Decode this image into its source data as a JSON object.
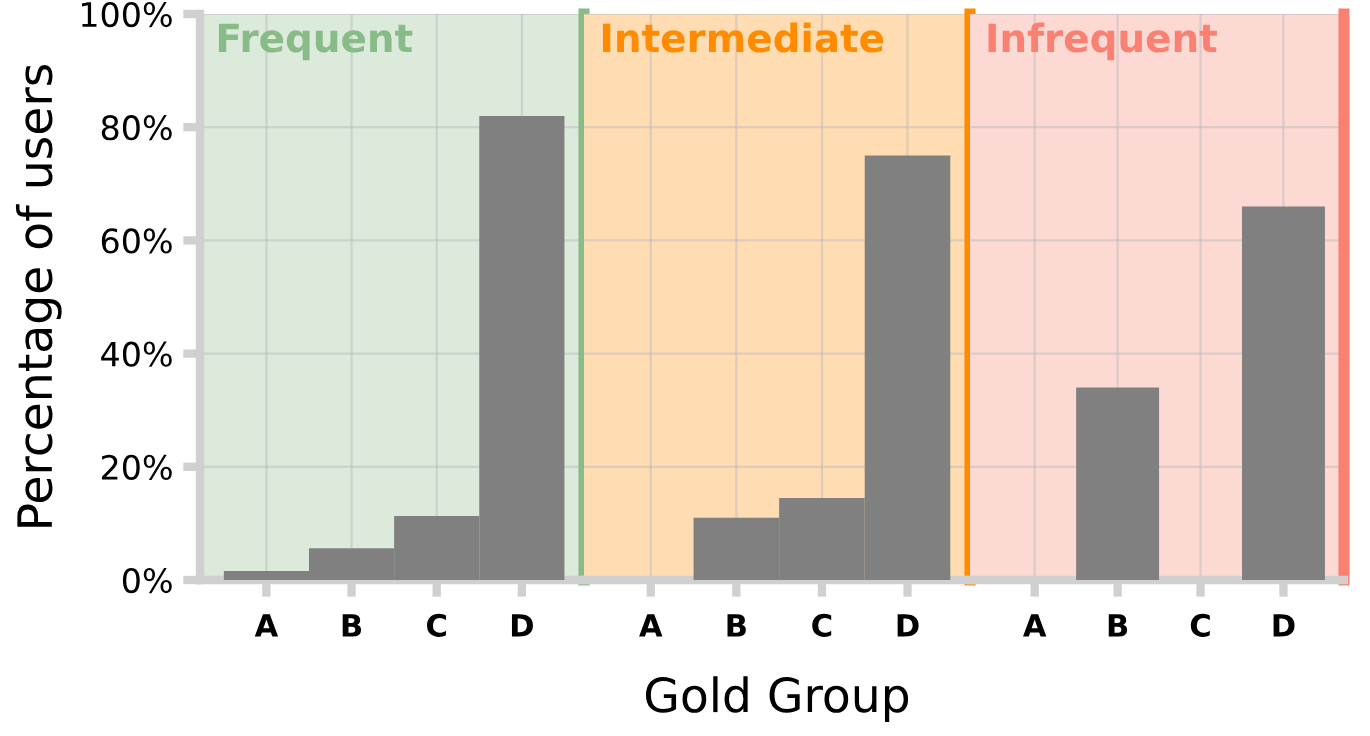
{
  "chart_data": [
    {
      "type": "bar",
      "ylabel": "Percentage of users",
      "categories": [
        "A",
        "B",
        "C",
        "D"
      ],
      "values": [
        1.6,
        5.6,
        11.3,
        82
      ],
      "color": "#808080",
      "ylim": [
        0,
        100
      ],
      "yticks": [
        {
          "value": 0,
          "label": "0%"
        },
        {
          "value": 20,
          "label": "20%"
        },
        {
          "value": 40,
          "label": "40%"
        },
        {
          "value": 60,
          "label": "60%"
        },
        {
          "value": 80,
          "label": "80%"
        },
        {
          "value": 100,
          "label": "100%"
        }
      ],
      "grid": true,
      "bands": [
        {
          "axis": "y",
          "from": 0,
          "to": 100,
          "label": "Frequent",
          "color": "#88bb88"
        }
      ]
    },
    {
      "type": "bar",
      "xlabel": "Gold Group",
      "categories": [
        "A",
        "B",
        "C",
        "D"
      ],
      "values": [
        0,
        11,
        14.5,
        75
      ],
      "color": "#808080",
      "ylim": [
        0,
        100
      ],
      "grid": true,
      "tick_labels": "x",
      "bands": [
        {
          "axis": "y",
          "from": 0,
          "to": 100,
          "label": "Intermediate",
          "color": "#ff8c00"
        }
      ]
    },
    {
      "type": "bar",
      "categories": [
        "A",
        "B",
        "C",
        "D"
      ],
      "values": [
        0,
        34,
        0,
        66
      ],
      "color": "#808080",
      "ylim": [
        0,
        100
      ],
      "grid": true,
      "tick_labels": "x",
      "bands": [
        {
          "axis": "y",
          "from": 0,
          "to": 100,
          "label": "Infrequent",
          "color": "#fa8072"
        }
      ]
    }
  ]
}
